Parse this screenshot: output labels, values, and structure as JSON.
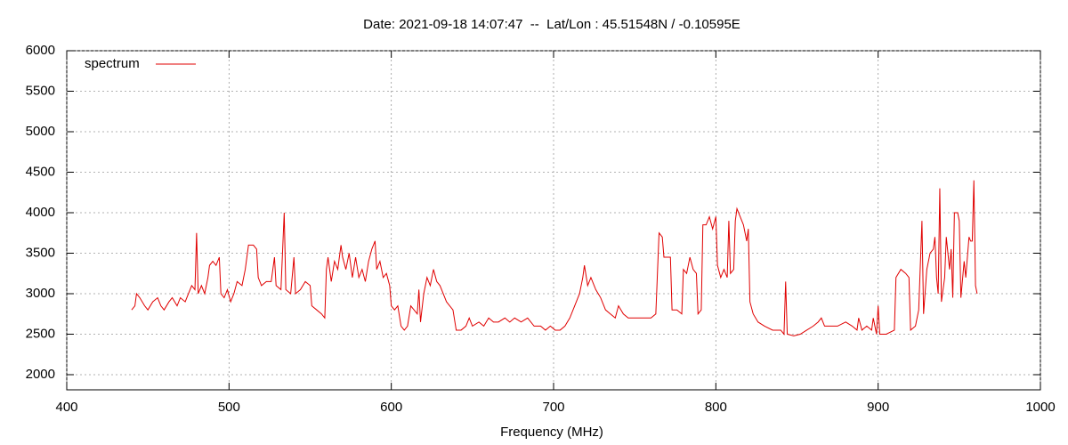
{
  "chart_data": {
    "type": "line",
    "title": "Date: 2021-09-18 14:07:47  --  Lat/Lon : 45.51548N / -0.10595E",
    "x_label": "Frequency (MHz)",
    "xlim": [
      400,
      1000
    ],
    "xticks": [
      400,
      500,
      600,
      700,
      800,
      900,
      1000
    ],
    "ylim": [
      1813,
      6000
    ],
    "yticks": [
      2000,
      2500,
      3000,
      3500,
      4000,
      4500,
      5000,
      5500,
      6000
    ],
    "grid": true,
    "legend": "top-left",
    "x": [
      440,
      442,
      443,
      445,
      448,
      450,
      453,
      456,
      458,
      460,
      463,
      465,
      468,
      470,
      473,
      475,
      477,
      479,
      480,
      481,
      483,
      485,
      487,
      488,
      490,
      492,
      494,
      495,
      497,
      499,
      501,
      503,
      505,
      508,
      510,
      512,
      515,
      517,
      518,
      520,
      523,
      526,
      528,
      529,
      532,
      534,
      535,
      538,
      540,
      541,
      544,
      547,
      550,
      551,
      554,
      557,
      559,
      560,
      561,
      563,
      565,
      567,
      569,
      570,
      572,
      574,
      576,
      578,
      580,
      582,
      584,
      586,
      588,
      590,
      591,
      593,
      595,
      597,
      599,
      600,
      602,
      604,
      606,
      608,
      610,
      612,
      614,
      616,
      617,
      618,
      620,
      622,
      624,
      626,
      628,
      630,
      632,
      634,
      636,
      638,
      640,
      643,
      646,
      648,
      650,
      654,
      657,
      660,
      663,
      666,
      670,
      673,
      676,
      680,
      684,
      688,
      692,
      695,
      698,
      701,
      704,
      707,
      710,
      713,
      716,
      718,
      719,
      721,
      723,
      726,
      729,
      732,
      735,
      738,
      740,
      743,
      746,
      750,
      755,
      760,
      763,
      764,
      765,
      767,
      768,
      770,
      772,
      773,
      776,
      779,
      780,
      782,
      784,
      786,
      788,
      789,
      791,
      792,
      794,
      796,
      798,
      800,
      801,
      803,
      805,
      807,
      808,
      809,
      811,
      812,
      813,
      815,
      817,
      819,
      820,
      821,
      823,
      826,
      830,
      835,
      840,
      842,
      843,
      844,
      848,
      852,
      856,
      860,
      863,
      865,
      867,
      870,
      875,
      880,
      884,
      887,
      888,
      890,
      893,
      896,
      897,
      899,
      900,
      901,
      905,
      910,
      911,
      914,
      917,
      919,
      920,
      923,
      925,
      927,
      928,
      930,
      932,
      934,
      935,
      936,
      937,
      938,
      939,
      941,
      942,
      944,
      945,
      946,
      947,
      949,
      950,
      951,
      953,
      954,
      956,
      957,
      958,
      959,
      960,
      961
    ],
    "series": [
      {
        "name": "spectrum",
        "color": "#e00000",
        "values": [
          2800,
          2850,
          3000,
          2950,
          2850,
          2800,
          2900,
          2950,
          2850,
          2800,
          2900,
          2950,
          2850,
          2950,
          2900,
          3000,
          3100,
          3050,
          3750,
          3000,
          3100,
          3000,
          3200,
          3350,
          3400,
          3350,
          3450,
          3000,
          2950,
          3050,
          2900,
          3000,
          3150,
          3100,
          3300,
          3600,
          3600,
          3550,
          3200,
          3100,
          3150,
          3150,
          3450,
          3100,
          3050,
          4000,
          3050,
          3000,
          3450,
          3000,
          3050,
          3150,
          3100,
          2850,
          2800,
          2750,
          2700,
          3300,
          3450,
          3150,
          3400,
          3300,
          3600,
          3450,
          3300,
          3500,
          3200,
          3450,
          3200,
          3300,
          3150,
          3400,
          3550,
          3650,
          3300,
          3400,
          3200,
          3250,
          3100,
          2850,
          2800,
          2850,
          2600,
          2550,
          2600,
          2850,
          2800,
          2750,
          3050,
          2650,
          3000,
          3200,
          3100,
          3300,
          3150,
          3100,
          3000,
          2900,
          2850,
          2800,
          2550,
          2550,
          2600,
          2700,
          2600,
          2650,
          2600,
          2700,
          2650,
          2650,
          2700,
          2650,
          2700,
          2650,
          2700,
          2600,
          2600,
          2550,
          2600,
          2550,
          2550,
          2600,
          2700,
          2850,
          3000,
          3200,
          3350,
          3100,
          3200,
          3050,
          2950,
          2800,
          2750,
          2700,
          2850,
          2750,
          2700,
          2700,
          2700,
          2700,
          2750,
          3250,
          3750,
          3700,
          3450,
          3450,
          3450,
          2800,
          2800,
          2750,
          3300,
          3250,
          3450,
          3300,
          3250,
          2750,
          2800,
          3850,
          3850,
          3950,
          3800,
          3950,
          3350,
          3200,
          3300,
          3200,
          3900,
          3250,
          3300,
          3900,
          4050,
          3950,
          3850,
          3650,
          3800,
          2900,
          2750,
          2650,
          2600,
          2550,
          2550,
          2500,
          3150,
          2500,
          2480,
          2500,
          2550,
          2600,
          2650,
          2700,
          2600,
          2600,
          2600,
          2650,
          2600,
          2550,
          2700,
          2550,
          2600,
          2550,
          2700,
          2500,
          2850,
          2500,
          2500,
          2550,
          3200,
          3300,
          3250,
          3200,
          2550,
          2600,
          2800,
          3900,
          2750,
          3300,
          3500,
          3550,
          3700,
          3200,
          3000,
          4300,
          2900,
          3200,
          3700,
          3300,
          3550,
          2950,
          4000,
          4000,
          3900,
          2950,
          3400,
          3200,
          3700,
          3650,
          3650,
          4400,
          3100,
          3000
        ]
      }
    ]
  }
}
